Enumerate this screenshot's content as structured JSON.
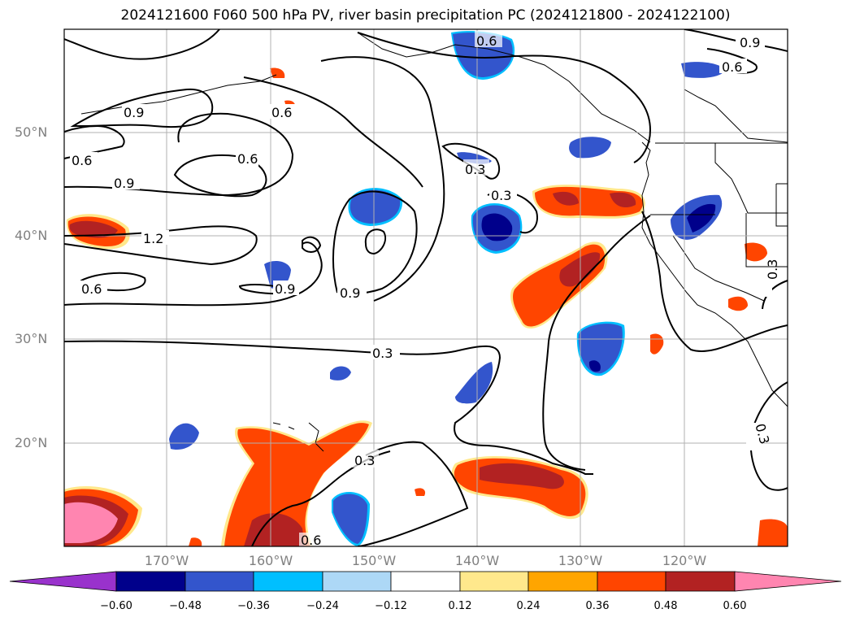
{
  "title": "2024121600 F060 500 hPa PV, river basin precipitation PC (2024121800 - 2024122100)",
  "latitude_labels": [
    "50°N",
    "40°N",
    "30°N",
    "20°N"
  ],
  "longitude_labels": [
    "170°W",
    "160°W",
    "150°W",
    "140°W",
    "130°W",
    "120°W"
  ],
  "contour_labels": {
    "c1": "0.6",
    "c2": "0.9",
    "c3": "0.6",
    "c4": "0.9",
    "c5": "0.6",
    "c6": "0.6",
    "c7": "0.6",
    "c8": "0.9",
    "c9": "1.2",
    "c10": "0.6",
    "c11": "0.9",
    "c12": "0.9",
    "c13": "0.3",
    "c14": "0.3",
    "c15": "0.3",
    "c16": "0.3",
    "c17": "0.6",
    "c18": "0.3",
    "c19": "0.3"
  },
  "colorbar": {
    "tick_labels": [
      "−0.60",
      "−0.48",
      "−0.36",
      "−0.24",
      "−0.12",
      "0.12",
      "0.24",
      "0.36",
      "0.48",
      "0.60"
    ],
    "colors": [
      "#9932cc",
      "#00008b",
      "#3355cc",
      "#00bfff",
      "#add8f6",
      "#ffffff",
      "#ffe88c",
      "#ffa500",
      "#ff4500",
      "#b22222",
      "#ff85b0"
    ]
  },
  "colors": {
    "neg_dark": "#00008b",
    "neg_mid": "#3355cc",
    "neg_light": "#00bfff",
    "pos_yellow": "#ffe88c",
    "pos_orange": "#ffa500",
    "pos_red": "#ff4500",
    "pos_dark": "#b22222",
    "pos_pink": "#ff85b0",
    "grid": "#b0b0b0"
  }
}
